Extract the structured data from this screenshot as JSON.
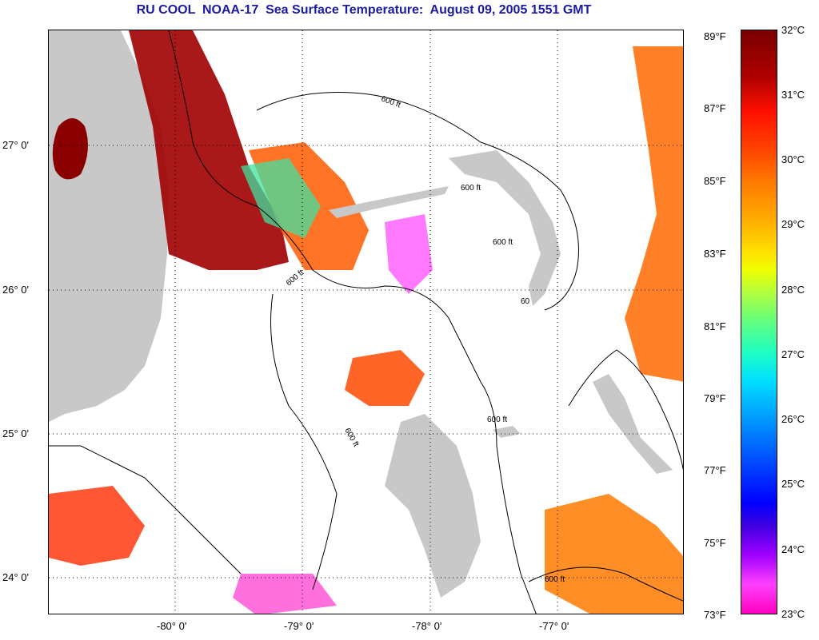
{
  "title": "RU COOL  NOAA-17  Sea Surface Temperature:  August 09, 2005 1551 GMT",
  "map": {
    "latitude_labels": [
      "27° 0'",
      "26° 0'",
      "25° 0'",
      "24° 0'"
    ],
    "longitude_labels": [
      "-80° 0'",
      "-79° 0'",
      "-78° 0'",
      "-77° 0'"
    ],
    "contour_label": "600 ft",
    "contour_label_short": "60",
    "colors": {
      "land": "#c8c8c8",
      "no_data": "#ffffff",
      "contour": "#000000"
    }
  },
  "colorbar": {
    "fahrenheit_labels": [
      "89°F",
      "87°F",
      "85°F",
      "83°F",
      "81°F",
      "79°F",
      "77°F",
      "75°F",
      "73°F"
    ],
    "celsius_labels": [
      "32°C",
      "31°C",
      "30°C",
      "29°C",
      "28°C",
      "27°C",
      "26°C",
      "25°C",
      "24°C",
      "23°C"
    ],
    "range_celsius": [
      23,
      32
    ],
    "range_fahrenheit": [
      73,
      89
    ]
  }
}
